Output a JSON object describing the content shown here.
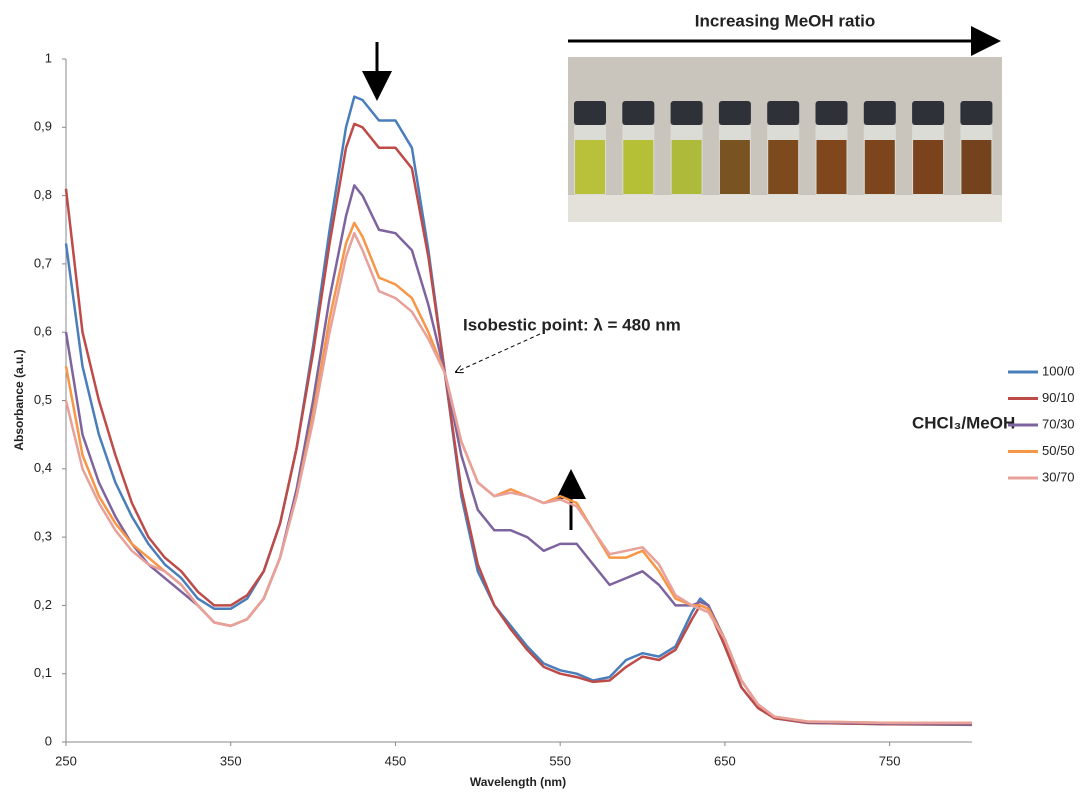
{
  "chart_data": {
    "type": "line",
    "x_label": "Wavelength (nm)",
    "y_label": "Absorbance (a.u.)",
    "annotations": {
      "top": "Increasing MeOH ratio",
      "isosbestic": "Isobestic point: λ = 480 nm",
      "legend_title": "CHCl₃/MeOH"
    },
    "legend": "right",
    "xlim": [
      250,
      800
    ],
    "ylim": [
      0,
      1
    ],
    "xticks": [
      250,
      350,
      450,
      550,
      650,
      750
    ],
    "yticks": [
      0,
      {
        "value": 0.1,
        "label": "0,1"
      },
      {
        "value": 0.2,
        "label": "0,2"
      },
      {
        "value": 0.3,
        "label": "0,3"
      },
      {
        "value": 0.4,
        "label": "0,4"
      },
      {
        "value": 0.5,
        "label": "0,5"
      },
      {
        "value": 0.6,
        "label": "0,6"
      },
      {
        "value": 0.7,
        "label": "0,7"
      },
      {
        "value": 0.8,
        "label": "0,8"
      },
      {
        "value": 0.9,
        "label": "0,9"
      },
      1
    ],
    "x": [
      250,
      260,
      270,
      280,
      290,
      300,
      310,
      320,
      330,
      340,
      350,
      360,
      370,
      380,
      390,
      400,
      410,
      420,
      425,
      430,
      440,
      450,
      460,
      470,
      480,
      490,
      500,
      510,
      520,
      530,
      540,
      550,
      560,
      570,
      580,
      590,
      600,
      610,
      620,
      630,
      635,
      640,
      650,
      660,
      670,
      680,
      700,
      750,
      800
    ],
    "series": [
      {
        "name": "100/0",
        "color": "#4a7ebb",
        "values": [
          0.73,
          0.55,
          0.45,
          0.38,
          0.33,
          0.29,
          0.26,
          0.24,
          0.21,
          0.195,
          0.195,
          0.21,
          0.25,
          0.32,
          0.43,
          0.58,
          0.75,
          0.9,
          0.945,
          0.94,
          0.91,
          0.91,
          0.87,
          0.72,
          0.54,
          0.36,
          0.25,
          0.2,
          0.17,
          0.14,
          0.115,
          0.105,
          0.1,
          0.09,
          0.095,
          0.12,
          0.13,
          0.125,
          0.14,
          0.19,
          0.21,
          0.2,
          0.14,
          0.08,
          0.05,
          0.035,
          0.028,
          0.026,
          0.025
        ]
      },
      {
        "name": "90/10",
        "color": "#be4b48",
        "values": [
          0.81,
          0.6,
          0.5,
          0.42,
          0.35,
          0.3,
          0.27,
          0.25,
          0.22,
          0.2,
          0.2,
          0.215,
          0.25,
          0.32,
          0.43,
          0.57,
          0.73,
          0.87,
          0.905,
          0.9,
          0.87,
          0.87,
          0.84,
          0.71,
          0.54,
          0.37,
          0.26,
          0.2,
          0.165,
          0.135,
          0.11,
          0.1,
          0.095,
          0.088,
          0.09,
          0.11,
          0.125,
          0.12,
          0.135,
          0.18,
          0.2,
          0.195,
          0.14,
          0.08,
          0.05,
          0.035,
          0.028,
          0.026,
          0.026
        ]
      },
      {
        "name": "70/30",
        "color": "#7e649e",
        "values": [
          0.6,
          0.45,
          0.38,
          0.33,
          0.29,
          0.26,
          0.24,
          0.22,
          0.2,
          0.175,
          0.17,
          0.18,
          0.21,
          0.27,
          0.37,
          0.5,
          0.65,
          0.77,
          0.815,
          0.8,
          0.75,
          0.745,
          0.72,
          0.64,
          0.54,
          0.42,
          0.34,
          0.31,
          0.31,
          0.3,
          0.28,
          0.29,
          0.29,
          0.26,
          0.23,
          0.24,
          0.25,
          0.23,
          0.2,
          0.2,
          0.205,
          0.2,
          0.15,
          0.09,
          0.055,
          0.037,
          0.029,
          0.027,
          0.027
        ]
      },
      {
        "name": "50/50",
        "color": "#f79646",
        "values": [
          0.55,
          0.42,
          0.36,
          0.32,
          0.29,
          0.27,
          0.25,
          0.23,
          0.2,
          0.175,
          0.17,
          0.18,
          0.21,
          0.27,
          0.36,
          0.48,
          0.62,
          0.73,
          0.76,
          0.74,
          0.68,
          0.67,
          0.65,
          0.6,
          0.54,
          0.44,
          0.38,
          0.36,
          0.37,
          0.36,
          0.35,
          0.36,
          0.35,
          0.31,
          0.27,
          0.27,
          0.28,
          0.25,
          0.21,
          0.2,
          0.2,
          0.195,
          0.15,
          0.09,
          0.055,
          0.037,
          0.03,
          0.028,
          0.028
        ]
      },
      {
        "name": "30/70",
        "color": "#e8a09a",
        "values": [
          0.5,
          0.4,
          0.35,
          0.31,
          0.28,
          0.26,
          0.25,
          0.23,
          0.2,
          0.175,
          0.17,
          0.18,
          0.21,
          0.27,
          0.36,
          0.47,
          0.6,
          0.71,
          0.745,
          0.72,
          0.66,
          0.65,
          0.63,
          0.59,
          0.54,
          0.44,
          0.38,
          0.36,
          0.365,
          0.36,
          0.35,
          0.355,
          0.345,
          0.31,
          0.275,
          0.28,
          0.285,
          0.26,
          0.215,
          0.2,
          0.195,
          0.19,
          0.15,
          0.09,
          0.055,
          0.037,
          0.03,
          0.028,
          0.028
        ]
      }
    ]
  }
}
